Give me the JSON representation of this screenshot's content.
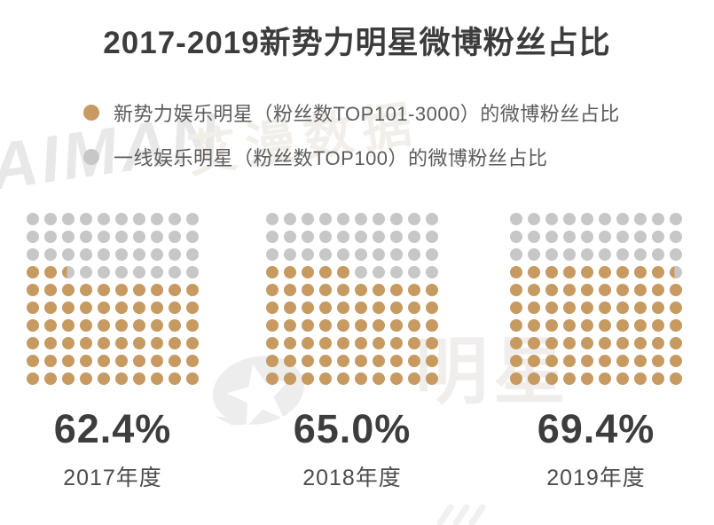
{
  "title": "2017-2019新势力明星微博粉丝占比",
  "legend": {
    "items": [
      {
        "label": "新势力娱乐明星（粉丝数TOP101-3000）的微博粉丝占比",
        "color": "#C79A62"
      },
      {
        "label": "一线娱乐明星（粉丝数TOP100）的微博粉丝占比",
        "color": "#C7C7C7"
      }
    ]
  },
  "chart_data": {
    "type": "waffle",
    "title": "2017-2019新势力明星微博粉丝占比",
    "grid": {
      "rows": 10,
      "cols": 10,
      "unit_percent": 1
    },
    "fill_order": "bottom-up-left-to-right",
    "categories": [
      "2017年度",
      "2018年度",
      "2019年度"
    ],
    "series": [
      {
        "name": "新势力娱乐明星（粉丝数TOP101-3000）的微博粉丝占比",
        "values": [
          62.4,
          65.0,
          69.4
        ],
        "color": "#C79A62"
      },
      {
        "name": "一线娱乐明星（粉丝数TOP100）的微博粉丝占比",
        "values": [
          37.6,
          35.0,
          30.6
        ],
        "color": "#C7C7C7"
      }
    ],
    "value_labels": [
      "62.4%",
      "65.0%",
      "69.4%"
    ],
    "legend_position": "top-left",
    "colors": {
      "primary": "#C79A62",
      "secondary": "#C7C7C7"
    }
  },
  "watermarks": {
    "logo_en": "AIMAN",
    "logo_cn": "艾漫数据",
    "center_text": "明星"
  }
}
